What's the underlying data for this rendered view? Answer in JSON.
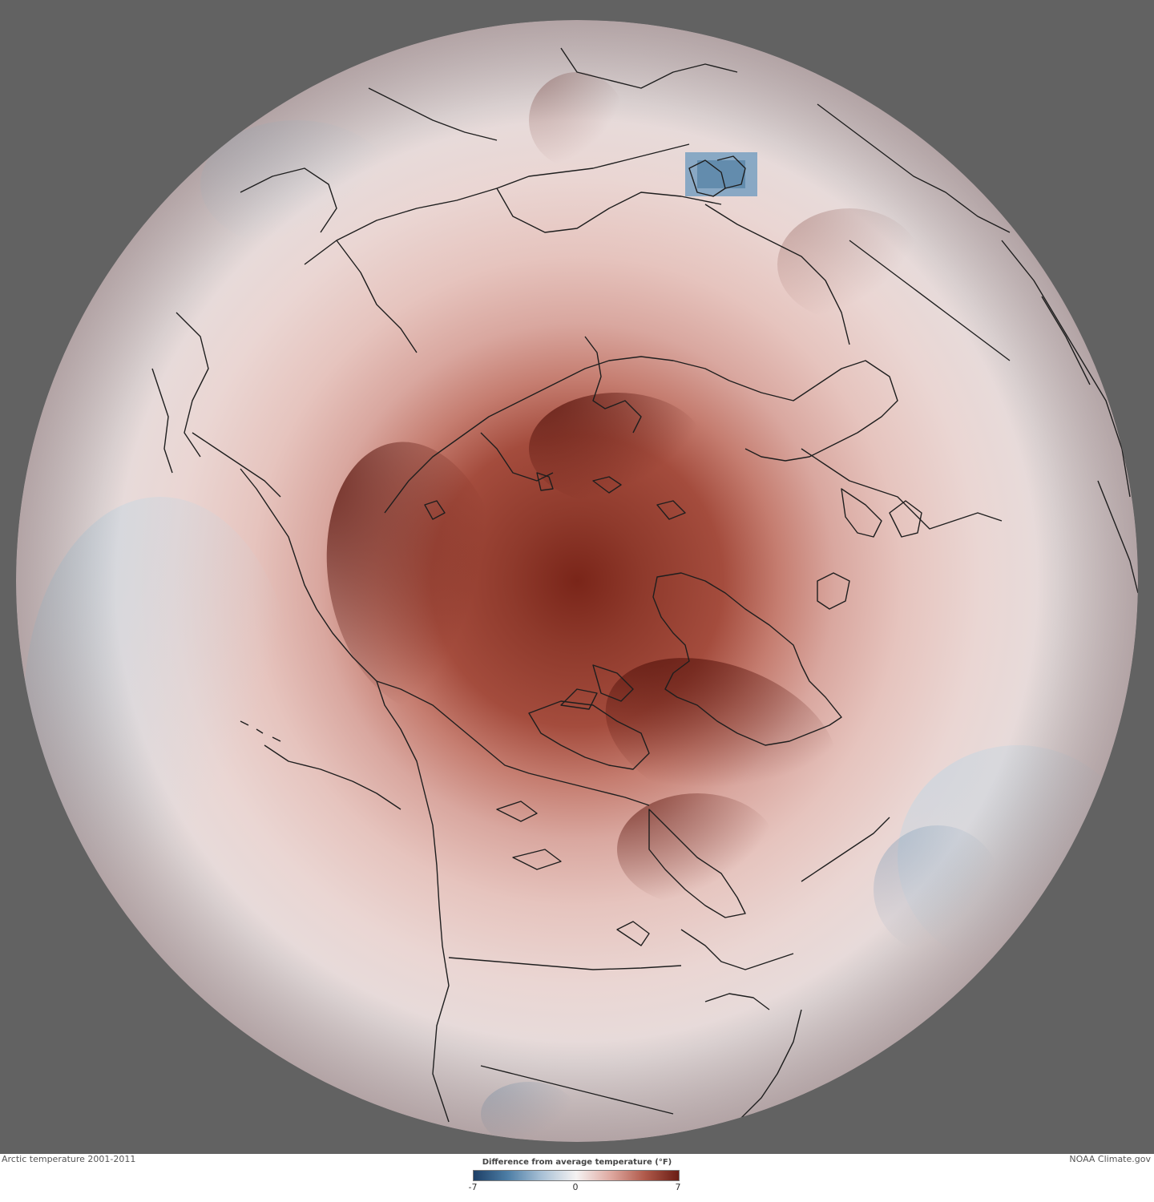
{
  "map": {
    "title": "Arctic temperature 2001-2011",
    "credit": "NOAA Climate.gov",
    "colors": {
      "background": "#626262",
      "cold": "#1d3f66",
      "neutral": "#f5f2f2",
      "warm": "#6a1d14",
      "coastline": "#1e1e1e"
    }
  },
  "legend": {
    "title": "Difference from average temperature (°F)",
    "min_label": "-7",
    "mid_label": "0",
    "max_label": "7",
    "range": [
      -7,
      7
    ],
    "stops": [
      "#1d3f66",
      "#4d7ea6",
      "#a9c1d6",
      "#f5f2f2",
      "#dfaaa2",
      "#b05a4b",
      "#6a1d14"
    ]
  }
}
